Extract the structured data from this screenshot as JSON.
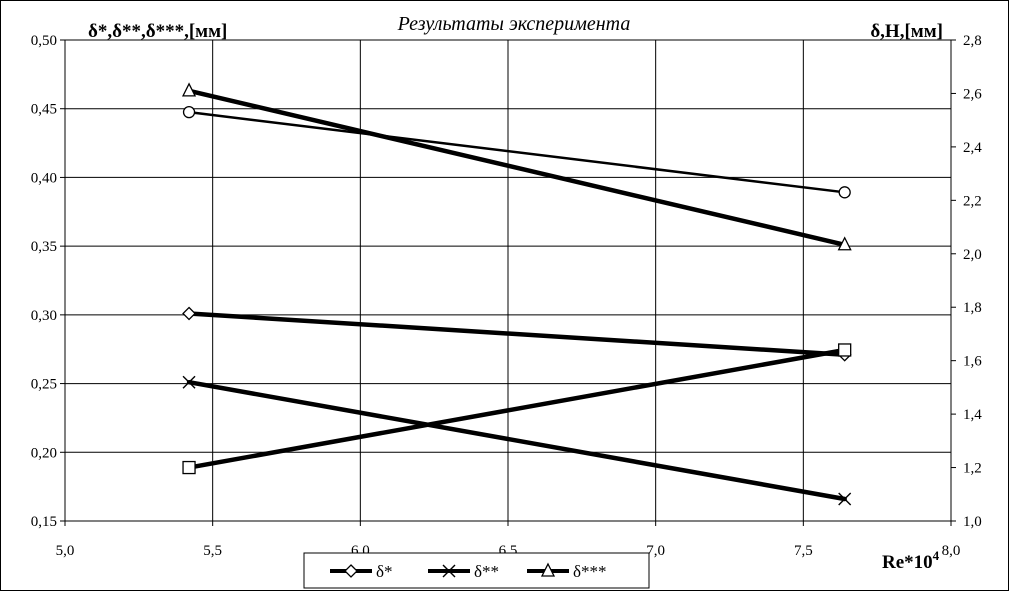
{
  "chart_data": {
    "type": "line",
    "title": "Результаты эксперимента",
    "ylabel_left": "δ*,δ**,δ***,[мм]",
    "ylabel_right": "δ,H,[мм]",
    "xlabel": "Re*10",
    "xlabel_superscript": "4",
    "xlim": [
      5.0,
      8.0
    ],
    "ylim_left": [
      0.15,
      0.5
    ],
    "ylim_right": [
      1.0,
      2.8
    ],
    "x_ticks": [
      "5,0",
      "5,5",
      "6,0",
      "6,5",
      "7,0",
      "7,5",
      "8,0"
    ],
    "y_left_ticks": [
      "0,15",
      "0,20",
      "0,25",
      "0,30",
      "0,35",
      "0,40",
      "0,45",
      "0,50"
    ],
    "y_right_ticks": [
      "1,0",
      "1,2",
      "1,4",
      "1,6",
      "1,8",
      "2,0",
      "2,2",
      "2,4",
      "2,6",
      "2,8"
    ],
    "grid": true,
    "legend_position": "bottom-center",
    "series": [
      {
        "name": "δ*",
        "marker": "diamond",
        "axis": "left",
        "thick": true,
        "x": [
          5.42,
          7.64
        ],
        "y": [
          0.301,
          0.271
        ]
      },
      {
        "name": "δ**",
        "marker": "x",
        "axis": "left",
        "thick": true,
        "x": [
          5.42,
          7.64
        ],
        "y": [
          0.251,
          0.166
        ]
      },
      {
        "name": "δ***",
        "marker": "triangle",
        "axis": "left",
        "thick": true,
        "x": [
          5.42,
          7.64
        ],
        "y": [
          0.463,
          0.351
        ]
      },
      {
        "name": "",
        "marker": "circle",
        "axis": "right",
        "thick": false,
        "x": [
          5.42,
          7.64
        ],
        "y": [
          2.53,
          2.23
        ]
      },
      {
        "name": "",
        "marker": "square",
        "axis": "right",
        "thick": true,
        "x": [
          5.42,
          7.64
        ],
        "y": [
          1.2,
          1.64
        ]
      }
    ]
  }
}
